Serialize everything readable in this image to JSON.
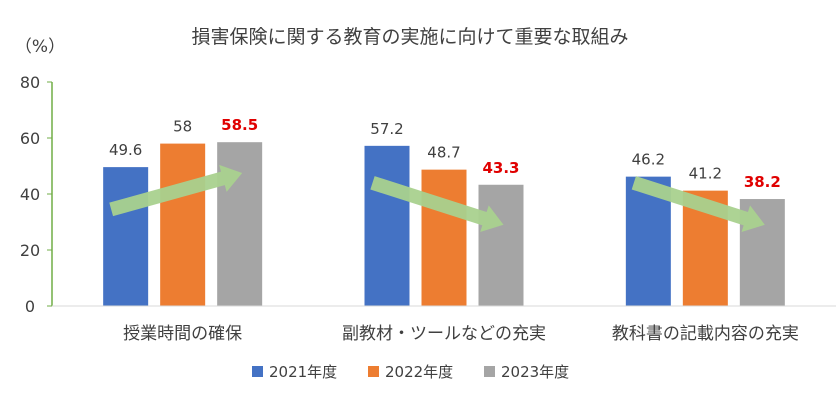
{
  "chart_data": {
    "type": "bar",
    "title": "損害保険に関する教育の実施に向けて重要な取組み",
    "ylabel": "（%）",
    "xlabel": "",
    "ylim": [
      0,
      80
    ],
    "yticks": [
      "80",
      "60",
      "40",
      "20",
      "0"
    ],
    "categories": [
      "授業時間の確保",
      "副教材・ツールなどの充実",
      "教科書の記載内容の充実"
    ],
    "series": [
      {
        "name": "2021年度",
        "color": "#4472c4",
        "values": [
          49.6,
          57.2,
          46.2
        ],
        "labels": [
          "49.6",
          "57.2",
          "46.2"
        ]
      },
      {
        "name": "2022年度",
        "color": "#ed7d31",
        "values": [
          58,
          48.7,
          41.2
        ],
        "labels": [
          "58",
          "48.7",
          "41.2"
        ]
      },
      {
        "name": "2023年度",
        "color": "#a5a5a5",
        "values": [
          58.5,
          43.3,
          38.2
        ],
        "labels": [
          "58.5",
          "43.3",
          "38.2"
        ]
      }
    ],
    "highlight_color": "#e00000",
    "highlight_series": "2023年度",
    "trend_arrows": [
      "up",
      "down",
      "down"
    ],
    "arrow_color": "#a9d18e",
    "axis_color": "#70ad47",
    "grid": false,
    "legend_position": "bottom"
  }
}
